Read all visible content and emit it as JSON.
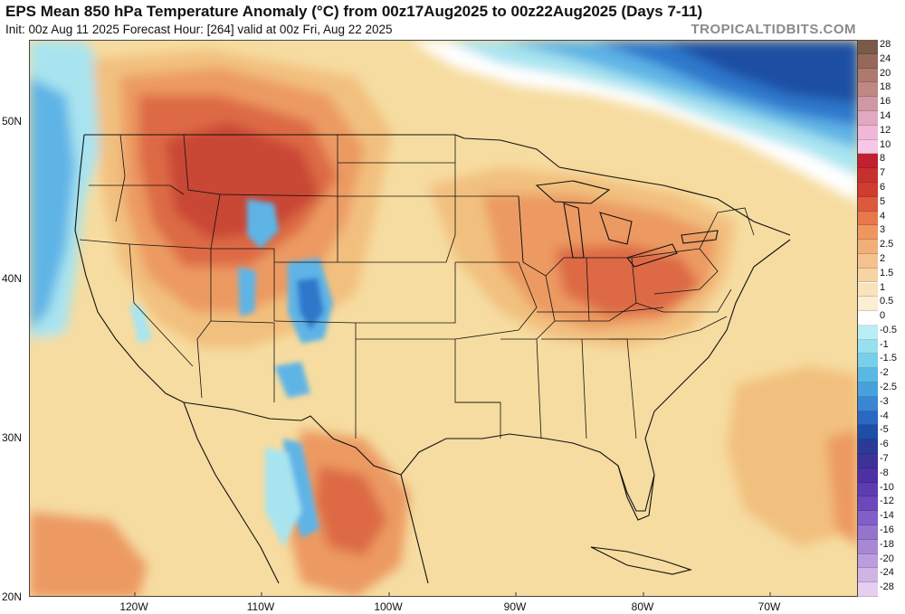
{
  "header": {
    "title": "EPS Mean 850 hPa Temperature Anomaly (°C) from 00z17Aug2025 to 00z22Aug2025 (Days 7-11)",
    "subtitle": "Init: 00z Aug 11 2025   Forecast Hour: [264]   valid at 00z Fri, Aug 22 2025",
    "brand": "TROPICALTIDBITS.COM"
  },
  "map": {
    "lat_labels": [
      "50N",
      "40N",
      "30N",
      "20N"
    ],
    "lon_labels": [
      "120W",
      "110W",
      "100W",
      "90W",
      "80W",
      "70W"
    ],
    "colors": {
      "background": "#f6dca0",
      "warm_light": "#f2c07e",
      "warm": "#ec9a62",
      "warm_strong": "#dd6a44",
      "hot": "#c94636",
      "cool_light": "#a8e4f0",
      "cool": "#5fb4e6",
      "cool_strong": "#2e78cc",
      "cold": "#1e4fa4",
      "border": "#111111"
    }
  },
  "colorbar": {
    "labels": [
      "28",
      "24",
      "20",
      "18",
      "16",
      "14",
      "12",
      "10",
      "8",
      "7",
      "6",
      "5",
      "4",
      "3",
      "2.5",
      "2",
      "1.5",
      "1",
      "0.5",
      "0",
      "-0.5",
      "-1",
      "-1.5",
      "-2",
      "-2.5",
      "-3",
      "-4",
      "-5",
      "-6",
      "-7",
      "-8",
      "-10",
      "-12",
      "-14",
      "-16",
      "-18",
      "-20",
      "-24",
      "-28"
    ],
    "colors": [
      "#7a5a48",
      "#96685a",
      "#ad7a70",
      "#c08882",
      "#d098a2",
      "#e2a8c0",
      "#f0b8d8",
      "#f6c8e4",
      "#c02030",
      "#c83030",
      "#d03c30",
      "#dc5a3c",
      "#e6784a",
      "#ee9660",
      "#f0ae78",
      "#f4c28e",
      "#f7d4a4",
      "#f9e2bc",
      "#fbeed4",
      "#ffffff",
      "#b8eef4",
      "#96e0f0",
      "#78cfea",
      "#5ab8e4",
      "#48a0dc",
      "#3a86d2",
      "#2a68c4",
      "#1e4ea8",
      "#2a3a96",
      "#3c3298",
      "#4c30a4",
      "#5c3cb0",
      "#6c48bc",
      "#8060c6",
      "#9474cc",
      "#a888d4",
      "#bc9cdc",
      "#d0b4e4",
      "#e6cef0"
    ]
  }
}
